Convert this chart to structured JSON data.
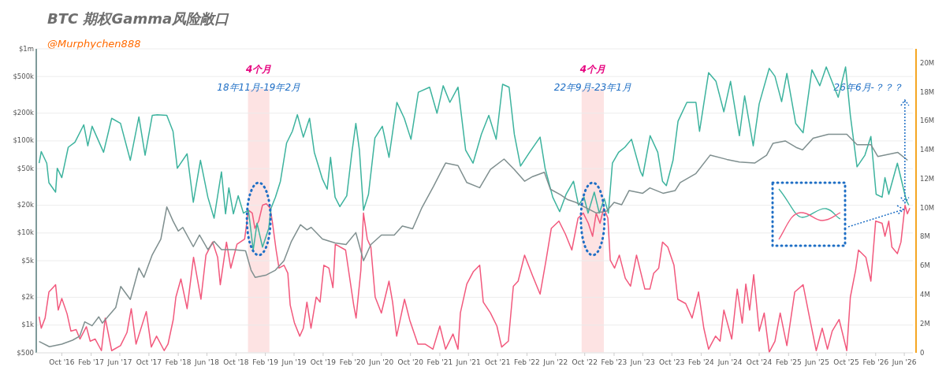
{
  "chart_data": {
    "type": "line",
    "title": "BTC 期权Gamma风险敞口",
    "annotations": [
      "@Murphychen888",
      "4个月",
      "4个月",
      {
        "text": "26年6月-？？？",
        "x": "2026-06-20",
        "y": 20000
      }
    ],
    "xlim": [
      "2016-06-16",
      "2026-07-07"
    ],
    "xticks": [
      {
        "value": "2016-10-01",
        "label": "Oct '16"
      },
      {
        "value": "2017-02-01",
        "label": "Feb '17"
      },
      {
        "value": "2017-06-01",
        "label": "Jun '17"
      },
      {
        "value": "2017-10-01",
        "label": "Oct '17"
      },
      {
        "value": "2018-02-01",
        "label": "Feb '18"
      },
      {
        "value": "2018-06-01",
        "label": "Jun '18"
      },
      {
        "value": "2018-10-01",
        "label": "Oct '18"
      },
      {
        "value": "2019-02-01",
        "label": "Feb '19"
      },
      {
        "value": "2019-06-01",
        "label": "Jun '19"
      },
      {
        "value": "2019-10-01",
        "label": "Oct '19"
      },
      {
        "value": "2020-02-01",
        "label": "Feb '20"
      },
      {
        "value": "2020-06-01",
        "label": "Jun '20"
      },
      {
        "value": "2020-10-01",
        "label": "Oct '20"
      },
      {
        "value": "2021-02-01",
        "label": "Feb '21"
      },
      {
        "value": "2021-06-01",
        "label": "Jun '21"
      },
      {
        "value": "2021-10-01",
        "label": "Oct '21"
      },
      {
        "value": "2022-02-01",
        "label": "Feb '22"
      },
      {
        "value": "2022-06-01",
        "label": "Jun '22"
      },
      {
        "value": "2022-10-01",
        "label": "Oct '22"
      },
      {
        "value": "2023-02-01",
        "label": "Feb '23"
      },
      {
        "value": "2023-06-01",
        "label": "Jun '23"
      },
      {
        "value": "2023-10-01",
        "label": "Oct '23"
      },
      {
        "value": "2024-02-01",
        "label": "Feb '24"
      },
      {
        "value": "2024-06-01",
        "label": "Jun '24"
      },
      {
        "value": "2024-10-01",
        "label": "Oct '24"
      },
      {
        "value": "2025-02-01",
        "label": "Feb '25"
      },
      {
        "value": "2025-06-01",
        "label": "Jun '25"
      },
      {
        "value": "2025-10-01",
        "label": "Oct '25"
      },
      {
        "value": "2026-02-01",
        "label": "Feb '26"
      },
      {
        "value": "2026-06-01",
        "label": "Jun '26"
      }
    ],
    "ylim": [
      500,
      1000000
    ],
    "yticks": [
      {
        "value": 500,
        "label": "$500"
      },
      {
        "value": 1000,
        "label": "$1k"
      },
      {
        "value": 2000,
        "label": "$2k"
      },
      {
        "value": 5000,
        "label": "$5k"
      },
      {
        "value": 10000,
        "label": "$10k"
      },
      {
        "value": 20000,
        "label": "$20k"
      },
      {
        "value": 50000,
        "label": "$50k"
      },
      {
        "value": 100000,
        "label": "$100k"
      },
      {
        "value": 200000,
        "label": "$200k"
      },
      {
        "value": 500000,
        "label": "$500k"
      },
      {
        "value": 1000000,
        "label": "$1m"
      }
    ],
    "y2lim": [
      0,
      21
    ],
    "y2ticks": [
      0,
      {
        "value": 2,
        "label": "2M"
      },
      {
        "value": 4,
        "label": "4M"
      },
      {
        "value": 6,
        "label": "6M"
      },
      {
        "value": 8,
        "label": "8M"
      },
      {
        "value": 10,
        "label": "10M"
      },
      {
        "value": 12,
        "label": "12M"
      },
      {
        "value": 14,
        "label": "14M"
      },
      {
        "value": 16,
        "label": "16M"
      },
      {
        "value": 18,
        "label": "18M"
      },
      {
        "value": 20,
        "label": "20M"
      }
    ],
    "log": "y",
    "grid": "y",
    "marker": "none",
    "line_style": "solid",
    "bands": [
      {
        "axis": "x",
        "from": "2018-11-20",
        "to": "2019-02-18",
        "label": "18年11月-19年2月",
        "color": "#fde3e3"
      },
      {
        "axis": "x",
        "from": "2022-09-18",
        "to": "2022-12-20",
        "label": "22年9月-23年1月",
        "color": "#fde3e3"
      }
    ],
    "series": [
      {
        "color": "#f2597d",
        "axis": "y2",
        "x": [
          "2016-06-28",
          "2016-07-07",
          "2016-07-23",
          "2016-08-08",
          "2016-08-25",
          "2016-09-05",
          "2016-09-16",
          "2016-10-01",
          "2016-10-23",
          "2016-11-08",
          "2016-11-30",
          "2016-12-16",
          "2017-01-12",
          "2017-01-28",
          "2017-02-18",
          "2017-03-16",
          "2017-04-01",
          "2017-04-28",
          "2017-06-04",
          "2017-07-01",
          "2017-07-19",
          "2017-08-08",
          "2017-09-20",
          "2017-10-11",
          "2017-11-02",
          "2017-12-04",
          "2017-12-20",
          "2018-01-11",
          "2018-01-22",
          "2018-02-12",
          "2018-03-10",
          "2018-04-06",
          "2018-05-07",
          "2018-05-28",
          "2018-06-25",
          "2018-07-16",
          "2018-07-27",
          "2018-08-22",
          "2018-09-09",
          "2018-10-05",
          "2018-11-06",
          "2018-11-22",
          "2018-12-08",
          "2018-12-19",
          "2019-01-04",
          "2019-01-20",
          "2019-02-05",
          "2019-02-21",
          "2019-03-03",
          "2019-03-18",
          "2019-03-30",
          "2019-04-20",
          "2019-05-06",
          "2019-05-16",
          "2019-06-03",
          "2019-06-25",
          "2019-07-10",
          "2019-07-25",
          "2019-08-11",
          "2019-09-02",
          "2019-09-18",
          "2019-10-04",
          "2019-10-25",
          "2019-11-11",
          "2019-11-21",
          "2020-01-03",
          "2020-02-06",
          "2020-02-16",
          "2020-03-07",
          "2020-03-18",
          "2020-04-03",
          "2020-04-18",
          "2020-05-06",
          "2020-06-01",
          "2020-07-03",
          "2020-07-18",
          "2020-08-04",
          "2020-09-06",
          "2020-09-28",
          "2020-11-01",
          "2020-12-01",
          "2021-01-03",
          "2021-02-01",
          "2021-02-25",
          "2021-03-28",
          "2021-04-18",
          "2021-04-28",
          "2021-05-25",
          "2021-06-21",
          "2021-07-18",
          "2021-08-02",
          "2021-09-01",
          "2021-09-28",
          "2021-10-18",
          "2021-11-15",
          "2021-12-06",
          "2021-12-26",
          "2022-01-22",
          "2022-02-25",
          "2022-03-28",
          "2022-04-22",
          "2022-05-14",
          "2022-06-15",
          "2022-07-12",
          "2022-08-08",
          "2022-09-03",
          "2022-09-25",
          "2022-10-16",
          "2022-11-03",
          "2022-11-18",
          "2022-12-04",
          "2022-12-20",
          "2023-01-06",
          "2023-01-16",
          "2023-02-03",
          "2023-02-23",
          "2023-03-20",
          "2023-04-11",
          "2023-05-06",
          "2023-06-10",
          "2023-07-01",
          "2023-07-17",
          "2023-08-07",
          "2023-08-23",
          "2023-09-14",
          "2023-10-10",
          "2023-10-26",
          "2023-11-28",
          "2023-12-25",
          "2024-01-21",
          "2024-02-12",
          "2024-03-03",
          "2024-04-01",
          "2024-04-20",
          "2024-05-06",
          "2024-06-08",
          "2024-07-01",
          "2024-07-22",
          "2024-08-06",
          "2024-08-22",
          "2024-09-08",
          "2024-10-01",
          "2024-10-22",
          "2024-11-12",
          "2024-12-06",
          "2024-12-28",
          "2025-01-25",
          "2025-02-27",
          "2025-04-03",
          "2025-04-28",
          "2025-05-28",
          "2025-06-22",
          "2025-07-14",
          "2025-08-03",
          "2025-09-01",
          "2025-10-03",
          "2025-10-18",
          "2025-11-09",
          "2025-11-21",
          "2025-12-22",
          "2026-01-12",
          "2026-02-01",
          "2026-02-28",
          "2026-03-12",
          "2026-03-28",
          "2026-04-10",
          "2026-05-03",
          "2026-05-18",
          "2026-06-04",
          "2026-06-14",
          "2026-06-24"
        ],
        "values": [
          2.5,
          1.7,
          2.4,
          4.2,
          4.5,
          4.7,
          2.95,
          3.75,
          2.7,
          1.5,
          1.6,
          0.95,
          1.8,
          0.8,
          0.95,
          0.15,
          2.4,
          0.15,
          0.5,
          1.4,
          3.05,
          0.6,
          2.85,
          0.4,
          1.15,
          0.15,
          0.6,
          2.3,
          3.85,
          5.1,
          3.05,
          6.6,
          3.7,
          6.75,
          7.65,
          6.6,
          4.7,
          7.65,
          5.85,
          7.5,
          7.85,
          9.85,
          9.65,
          8.6,
          9.1,
          10.2,
          10.3,
          10.0,
          8.95,
          7.1,
          5.85,
          6.05,
          5.5,
          3.3,
          2.05,
          1.15,
          1.7,
          3.5,
          1.7,
          3.85,
          3.5,
          6.05,
          5.85,
          4.5,
          7.5,
          7.1,
          3.3,
          2.4,
          5.7,
          9.65,
          7.85,
          7.3,
          3.85,
          2.75,
          4.95,
          3.5,
          1.15,
          3.7,
          2.25,
          0.6,
          0.6,
          0.25,
          1.85,
          0.25,
          1.3,
          0.25,
          2.75,
          4.75,
          5.6,
          6.05,
          3.5,
          2.75,
          1.85,
          0.4,
          0.8,
          4.6,
          4.95,
          6.75,
          5.3,
          4.05,
          6.4,
          8.6,
          9.1,
          8.2,
          7.1,
          9.3,
          9.65,
          8.95,
          8.05,
          9.65,
          8.95,
          10.0,
          9.3,
          6.4,
          5.85,
          6.75,
          5.15,
          4.6,
          6.75,
          4.4,
          4.4,
          5.5,
          5.85,
          7.65,
          7.3,
          6.05,
          3.7,
          3.4,
          2.4,
          4.2,
          1.7,
          0.25,
          1.15,
          0.8,
          2.95,
          0.95,
          4.4,
          2.05,
          4.75,
          2.95,
          5.4,
          1.5,
          2.75,
          0.05,
          0.8,
          2.75,
          0.5,
          4.2,
          4.7,
          2.6,
          0.15,
          1.7,
          0.25,
          1.5,
          2.3,
          0.15,
          3.85,
          5.7,
          7.1,
          6.6,
          4.95,
          9.1,
          8.95,
          8.05,
          9.1,
          7.3,
          6.85,
          7.65,
          10.2,
          9.6,
          10.0
        ]
      },
      {
        "color": "#3db39e",
        "axis": "y2",
        "x": [
          "2016-06-28",
          "2016-07-07",
          "2016-07-30",
          "2016-08-08",
          "2016-09-05",
          "2016-09-12",
          "2016-10-01",
          "2016-10-28",
          "2016-11-25",
          "2017-01-01",
          "2017-01-18",
          "2017-02-05",
          "2017-03-25",
          "2017-04-28",
          "2017-06-04",
          "2017-07-15",
          "2017-08-20",
          "2017-09-15",
          "2017-10-15",
          "2017-11-05",
          "2017-12-15",
          "2018-01-10",
          "2018-01-28",
          "2018-03-10",
          "2018-04-05",
          "2018-05-05",
          "2018-06-05",
          "2018-07-01",
          "2018-08-01",
          "2018-08-18",
          "2018-09-01",
          "2018-09-20",
          "2018-10-10",
          "2018-11-01",
          "2018-11-22",
          "2018-12-12",
          "2018-12-28",
          "2019-01-20",
          "2019-02-15",
          "2019-02-25",
          "2019-03-15",
          "2019-04-05",
          "2019-05-01",
          "2019-05-25",
          "2019-06-15",
          "2019-07-10",
          "2019-08-05",
          "2019-08-25",
          "2019-09-28",
          "2019-10-18",
          "2019-11-01",
          "2019-11-20",
          "2019-12-10",
          "2020-01-08",
          "2020-01-28",
          "2020-02-15",
          "2020-03-01",
          "2020-03-18",
          "2020-04-08",
          "2020-05-05",
          "2020-06-05",
          "2020-07-03",
          "2020-08-05",
          "2020-09-05",
          "2020-10-03",
          "2020-11-03",
          "2020-12-20",
          "2021-01-20",
          "2021-02-15",
          "2021-03-15",
          "2021-04-18",
          "2021-05-20",
          "2021-06-20",
          "2021-07-25",
          "2021-08-25",
          "2021-09-25",
          "2021-10-22",
          "2021-11-18",
          "2021-12-10",
          "2022-01-05",
          "2022-02-12",
          "2022-03-28",
          "2022-04-18",
          "2022-05-20",
          "2022-06-18",
          "2022-07-15",
          "2022-08-15",
          "2022-09-05",
          "2022-09-28",
          "2022-10-15",
          "2022-11-10",
          "2022-12-01",
          "2022-12-22",
          "2023-01-08",
          "2023-01-25",
          "2023-02-20",
          "2023-03-18",
          "2023-04-15",
          "2023-05-22",
          "2023-06-01",
          "2023-07-02",
          "2023-08-03",
          "2023-08-23",
          "2023-09-08",
          "2023-10-06",
          "2023-10-27",
          "2023-12-03",
          "2024-01-10",
          "2024-01-25",
          "2024-03-03",
          "2024-04-03",
          "2024-05-06",
          "2024-06-03",
          "2024-07-10",
          "2024-08-01",
          "2024-09-06",
          "2024-10-01",
          "2024-11-12",
          "2024-12-06",
          "2025-01-03",
          "2025-01-25",
          "2025-03-03",
          "2025-04-03",
          "2025-05-10",
          "2025-06-12",
          "2025-07-09",
          "2025-08-28",
          "2025-09-28",
          "2025-10-18",
          "2025-11-15",
          "2025-12-18",
          "2026-01-12",
          "2026-02-03",
          "2026-02-28",
          "2026-03-12",
          "2026-03-28",
          "2026-05-03",
          "2026-06-01",
          "2026-06-10",
          "2026-06-20"
        ],
        "values": [
          13.1,
          13.9,
          13.1,
          11.75,
          11.1,
          12.75,
          12.1,
          14.2,
          14.55,
          15.75,
          14.3,
          15.65,
          13.85,
          16.2,
          15.85,
          13.3,
          16.3,
          13.65,
          16.4,
          16.45,
          16.4,
          15.3,
          12.75,
          13.75,
          10.4,
          13.3,
          10.75,
          9.3,
          12.5,
          9.6,
          11.4,
          9.6,
          10.85,
          9.65,
          9.85,
          7.1,
          8.95,
          7.3,
          8.6,
          10.0,
          10.75,
          11.85,
          14.5,
          15.3,
          16.45,
          14.9,
          16.2,
          13.85,
          12.0,
          11.3,
          13.5,
          10.75,
          10.1,
          10.85,
          13.65,
          15.85,
          14.0,
          9.85,
          10.95,
          14.85,
          15.65,
          13.5,
          17.3,
          16.2,
          14.75,
          18.0,
          18.35,
          16.55,
          18.45,
          17.3,
          18.35,
          14.0,
          13.1,
          15.1,
          16.4,
          14.75,
          18.55,
          18.35,
          15.1,
          12.9,
          13.85,
          14.9,
          12.75,
          10.75,
          9.75,
          10.95,
          11.85,
          10.2,
          10.75,
          9.65,
          11.1,
          9.65,
          10.65,
          9.65,
          13.1,
          13.85,
          14.2,
          14.75,
          12.55,
          12.2,
          15.0,
          13.85,
          11.85,
          11.55,
          13.3,
          16.0,
          17.3,
          17.3,
          15.3,
          19.35,
          18.75,
          16.65,
          18.75,
          15.0,
          17.75,
          14.3,
          17.2,
          19.65,
          19.1,
          17.35,
          19.3,
          15.85,
          15.2,
          19.55,
          18.45,
          19.75,
          17.65,
          19.75,
          16.4,
          12.85,
          13.65,
          14.95,
          10.95,
          10.75,
          12.1,
          10.95,
          13.1,
          11.1,
          10.5,
          10.2
        ]
      },
      {
        "color": "#7f8f8f",
        "axis": "y",
        "x": [
          "2016-06-28",
          "2016-08-10",
          "2016-10-01",
          "2016-11-15",
          "2016-12-15",
          "2017-01-05",
          "2017-02-05",
          "2017-03-05",
          "2017-03-20",
          "2017-05-15",
          "2017-06-05",
          "2017-07-15",
          "2017-08-20",
          "2017-09-10",
          "2017-10-15",
          "2017-11-20",
          "2017-12-15",
          "2018-01-10",
          "2018-02-01",
          "2018-02-20",
          "2018-04-05",
          "2018-05-01",
          "2018-06-05",
          "2018-07-01",
          "2018-08-01",
          "2018-09-20",
          "2018-11-10",
          "2018-12-03",
          "2018-12-20",
          "2019-02-05",
          "2019-03-15",
          "2019-04-20",
          "2019-05-20",
          "2019-06-28",
          "2019-07-25",
          "2019-08-12",
          "2019-09-28",
          "2019-11-20",
          "2020-01-05",
          "2020-02-15",
          "2020-03-18",
          "2020-04-18",
          "2020-06-01",
          "2020-07-25",
          "2020-08-28",
          "2020-10-10",
          "2020-11-18",
          "2021-01-05",
          "2021-02-05",
          "2021-02-25",
          "2021-04-18",
          "2021-05-25",
          "2021-07-18",
          "2021-09-01",
          "2021-10-28",
          "2021-12-10",
          "2022-01-22",
          "2022-02-25",
          "2022-04-15",
          "2022-05-10",
          "2022-06-22",
          "2022-07-22",
          "2022-08-25",
          "2022-10-05",
          "2022-11-18",
          "2023-01-01",
          "2023-02-01",
          "2023-03-05",
          "2023-04-05",
          "2023-06-01",
          "2023-07-01",
          "2023-08-25",
          "2023-10-15",
          "2023-11-05",
          "2024-01-10",
          "2024-03-10",
          "2024-05-18",
          "2024-07-10",
          "2024-09-12",
          "2024-11-01",
          "2024-11-28",
          "2025-01-18",
          "2025-03-05",
          "2025-04-01",
          "2025-05-15",
          "2025-07-18",
          "2025-10-03",
          "2025-11-15",
          "2026-01-12",
          "2026-02-10",
          "2026-05-05",
          "2026-06-15"
        ],
        "values": [
          664,
          582,
          621,
          685,
          757,
          1085,
          984,
          1230,
          1050,
          1550,
          2630,
          1900,
          4170,
          3300,
          5800,
          8600,
          19200,
          13500,
          10500,
          11500,
          7100,
          9500,
          6600,
          8100,
          6600,
          6600,
          6400,
          3950,
          3300,
          3500,
          3950,
          5000,
          8000,
          12300,
          10800,
          11500,
          8600,
          7800,
          7500,
          10100,
          5000,
          7500,
          9500,
          9500,
          11900,
          11100,
          18900,
          31900,
          45700,
          57500,
          54000,
          35300,
          31000,
          49000,
          63500,
          49000,
          36500,
          41000,
          45700,
          29900,
          26000,
          23000,
          21500,
          18900,
          16500,
          17300,
          21500,
          20300,
          28900,
          27000,
          30900,
          27000,
          28900,
          35300,
          44300,
          70200,
          63000,
          59000,
          57500,
          70000,
          94200,
          100000,
          85000,
          80000,
          107000,
          118000,
          118000,
          91000,
          91000,
          67700,
          75000,
          61600
        ]
      }
    ]
  }
}
